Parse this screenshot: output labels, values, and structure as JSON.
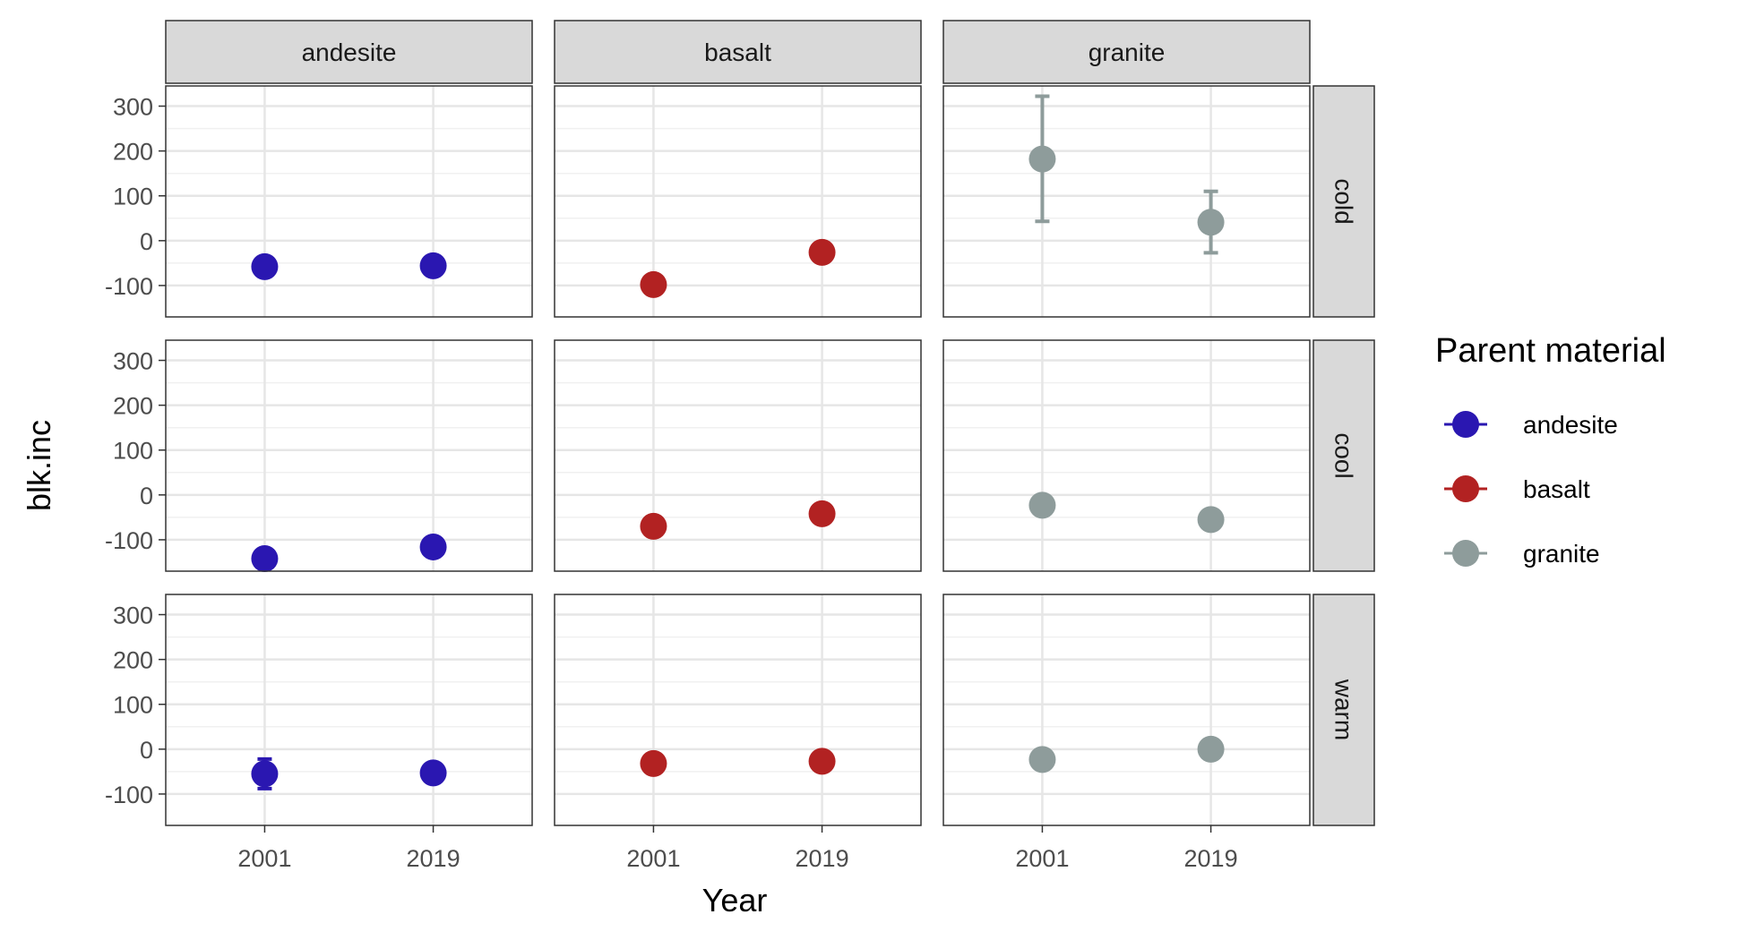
{
  "chart_data": {
    "type": "scatter",
    "facet_cols": [
      "andesite",
      "basalt",
      "granite"
    ],
    "facet_rows": [
      "cold",
      "cool",
      "warm"
    ],
    "x": [
      "2001",
      "2019"
    ],
    "xlabel": "Year",
    "ylabel": "blk.inc",
    "ylim": [
      -170,
      345
    ],
    "yticks": [
      -100,
      0,
      100,
      200,
      300
    ],
    "grid": true,
    "legend": {
      "title": "Parent material",
      "position": "right",
      "items": [
        {
          "name": "andesite",
          "color": "#2a17b1"
        },
        {
          "name": "basalt",
          "color": "#b22222"
        },
        {
          "name": "granite",
          "color": "#8e9c9b"
        }
      ]
    },
    "series": [
      {
        "name": "andesite",
        "color": "#2a17b1",
        "panels": {
          "cold": [
            {
              "x": "2001",
              "y": -58
            },
            {
              "x": "2019",
              "y": -56
            }
          ],
          "cool": [
            {
              "x": "2001",
              "y": -142
            },
            {
              "x": "2019",
              "y": -116
            }
          ],
          "warm": [
            {
              "x": "2001",
              "y": -55,
              "ymin": -88,
              "ymax": -22
            },
            {
              "x": "2019",
              "y": -53
            }
          ]
        }
      },
      {
        "name": "basalt",
        "color": "#b22222",
        "panels": {
          "cold": [
            {
              "x": "2001",
              "y": -98
            },
            {
              "x": "2019",
              "y": -26
            }
          ],
          "cool": [
            {
              "x": "2001",
              "y": -70
            },
            {
              "x": "2019",
              "y": -42
            }
          ],
          "warm": [
            {
              "x": "2001",
              "y": -32
            },
            {
              "x": "2019",
              "y": -27
            }
          ]
        }
      },
      {
        "name": "granite",
        "color": "#8e9c9b",
        "panels": {
          "cold": [
            {
              "x": "2001",
              "y": 182,
              "ymin": 43,
              "ymax": 322
            },
            {
              "x": "2019",
              "y": 41,
              "ymin": -27,
              "ymax": 110
            }
          ],
          "cool": [
            {
              "x": "2001",
              "y": -23
            },
            {
              "x": "2019",
              "y": -55
            }
          ],
          "warm": [
            {
              "x": "2001",
              "y": -23
            },
            {
              "x": "2019",
              "y": 0
            }
          ]
        }
      }
    ]
  }
}
